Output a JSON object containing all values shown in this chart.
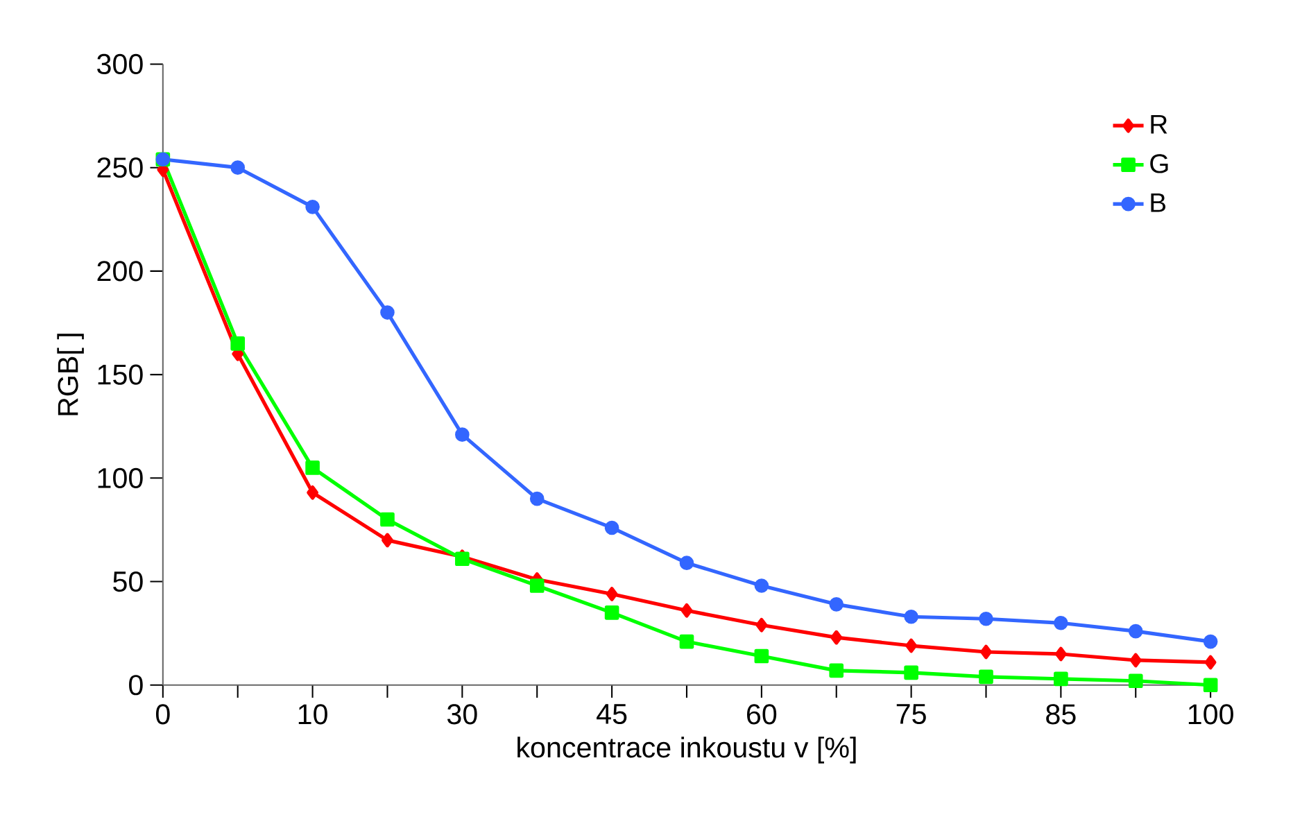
{
  "chart_data": {
    "type": "line",
    "xlabel": "koncentrace inkoustu v [%]",
    "ylabel": "RGB[ ]",
    "categories": [
      "0",
      null,
      "10",
      null,
      "30",
      null,
      "45",
      null,
      "60",
      null,
      "75",
      null,
      "85",
      null,
      "100"
    ],
    "series": [
      {
        "name": "R",
        "color": "#ff0000",
        "marker": "diamond",
        "values": [
          249,
          160,
          93,
          70,
          62,
          51,
          44,
          36,
          29,
          23,
          19,
          16,
          15,
          12,
          11
        ]
      },
      {
        "name": "G",
        "color": "#00ff00",
        "marker": "square",
        "values": [
          254,
          165,
          105,
          80,
          61,
          48,
          35,
          21,
          14,
          7,
          6,
          4,
          3,
          2,
          0
        ]
      },
      {
        "name": "B",
        "color": "#3366ff",
        "marker": "circle",
        "values": [
          254,
          250,
          231,
          180,
          121,
          90,
          76,
          59,
          48,
          39,
          33,
          32,
          30,
          26,
          21
        ]
      }
    ],
    "ylim": [
      0,
      300
    ],
    "yticks": [
      0,
      50,
      100,
      150,
      200,
      250,
      300
    ],
    "grid": false,
    "legend": "top right",
    "line_style": "solid"
  }
}
